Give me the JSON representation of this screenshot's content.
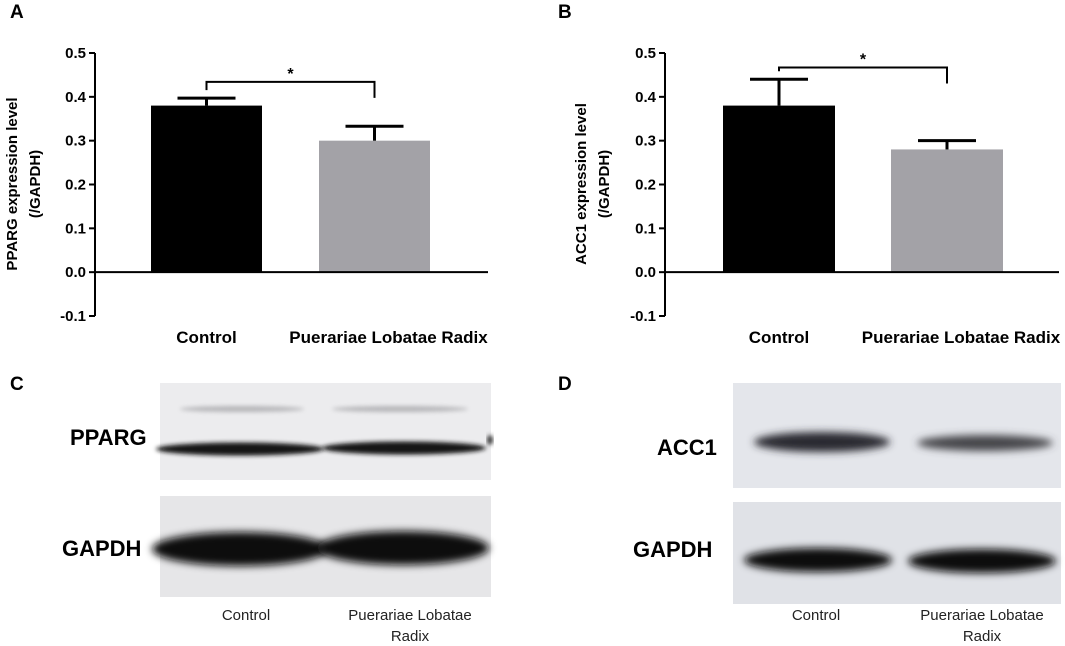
{
  "panels": {
    "A": "A",
    "B": "B",
    "C": "C",
    "D": "D"
  },
  "chart_data": [
    {
      "type": "bar",
      "panel": "A",
      "categories": [
        "Control",
        "Puerariae Lobatae Radix"
      ],
      "values": [
        0.38,
        0.3
      ],
      "error_upper": [
        0.397,
        0.333
      ],
      "bar_colors": [
        "#000000",
        "#a3a2a7"
      ],
      "ylabel_lines": [
        "PPARG expression level",
        "(/GAPDH)"
      ],
      "ylim": [
        -0.1,
        0.5
      ],
      "yticks": [
        "0.5",
        "0.4",
        "0.3",
        "0.2",
        "0.1",
        "0.0",
        "-0.1"
      ],
      "significance": "*",
      "significance_bracket_height": 0.434
    },
    {
      "type": "bar",
      "panel": "B",
      "categories": [
        "Control",
        "Puerariae Lobatae Radix"
      ],
      "values": [
        0.38,
        0.28
      ],
      "error_upper": [
        0.44,
        0.3
      ],
      "bar_colors": [
        "#000000",
        "#a3a2a7"
      ],
      "ylabel_lines": [
        "ACC1 expression level",
        "(/GAPDH)"
      ],
      "ylim": [
        -0.1,
        0.5
      ],
      "yticks": [
        "0.5",
        "0.4",
        "0.3",
        "0.2",
        "0.1",
        "0.0",
        "-0.1"
      ],
      "significance": "*",
      "significance_bracket_height": 0.467
    }
  ],
  "blots": {
    "C": {
      "proteins": [
        "PPARG",
        "GAPDH"
      ],
      "lanes": [
        "Control",
        "Puerariae Lobatae",
        "Radix"
      ]
    },
    "D": {
      "proteins": [
        "ACC1",
        "GAPDH"
      ],
      "lanes": [
        "Control",
        "Puerariae Lobatae",
        "Radix"
      ]
    }
  }
}
